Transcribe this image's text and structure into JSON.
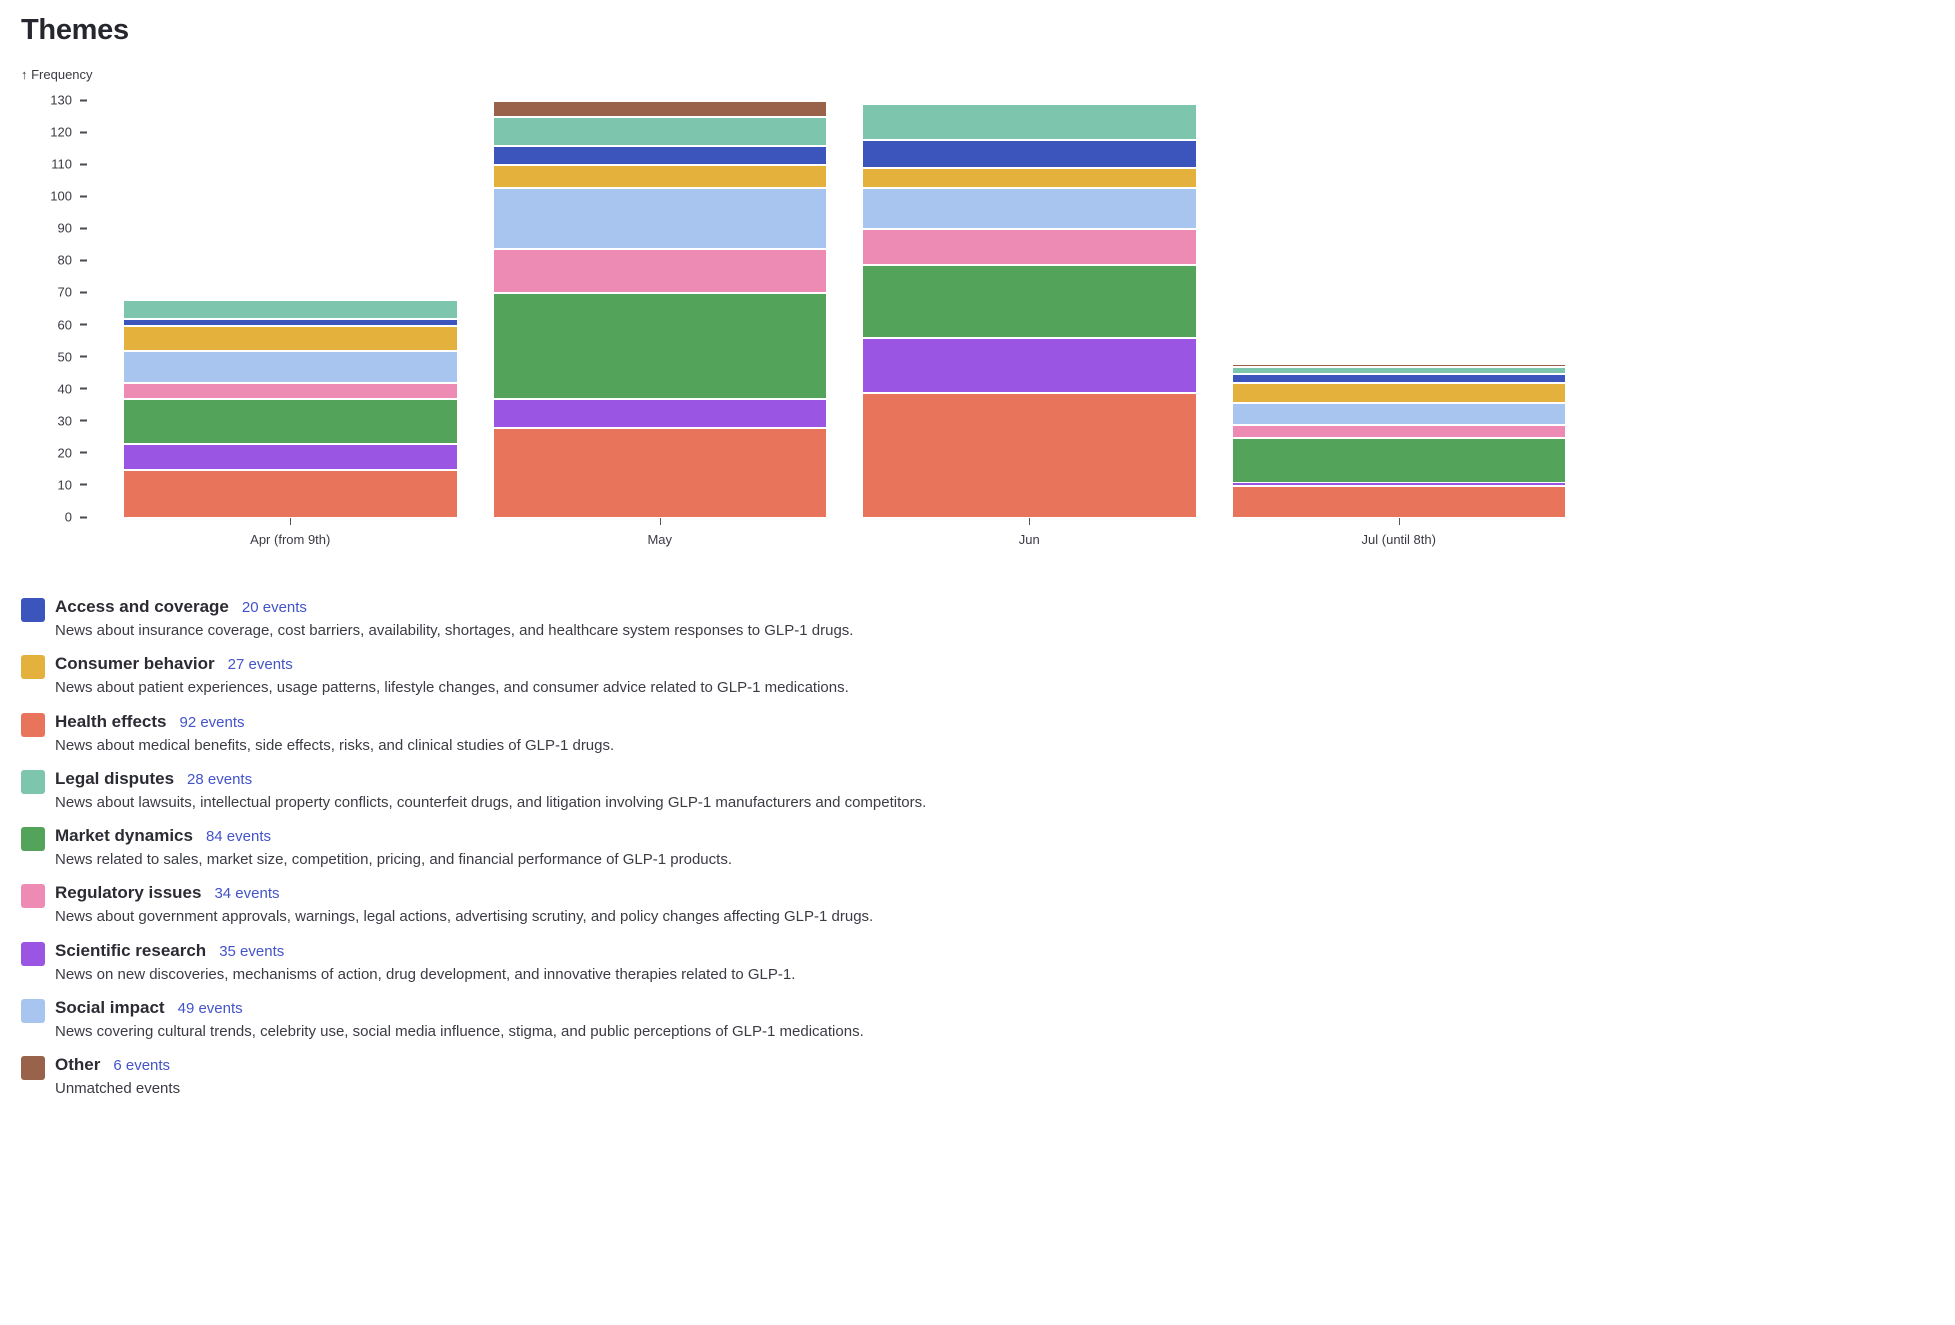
{
  "page": {
    "title": "Themes"
  },
  "chart_data": {
    "type": "bar",
    "stacked": true,
    "title": "Themes",
    "ylabel": "↑ Frequency",
    "xlabel": "",
    "ylim": [
      0,
      130
    ],
    "ytick_step": 10,
    "grid": false,
    "legend_position": "bottom",
    "categories": [
      "Apr (from 9th)",
      "May",
      "Jun",
      "Jul (until 8th)"
    ],
    "stack_order_bottom_to_top": [
      "Health effects",
      "Scientific research",
      "Market dynamics",
      "Regulatory issues",
      "Social impact",
      "Consumer behavior",
      "Access and coverage",
      "Legal disputes",
      "Other"
    ],
    "series": [
      {
        "name": "Health effects",
        "color": "#e8745c",
        "values": [
          15,
          28,
          39,
          10
        ]
      },
      {
        "name": "Scientific research",
        "color": "#9a55e2",
        "values": [
          8,
          9,
          17,
          1
        ]
      },
      {
        "name": "Market dynamics",
        "color": "#53a35a",
        "values": [
          14,
          33,
          23,
          14
        ]
      },
      {
        "name": "Regulatory issues",
        "color": "#ee8bb5",
        "values": [
          5,
          14,
          11,
          4
        ]
      },
      {
        "name": "Social impact",
        "color": "#a8c5f0",
        "values": [
          10,
          19,
          13,
          7
        ]
      },
      {
        "name": "Consumer behavior",
        "color": "#e3b13c",
        "values": [
          8,
          7,
          6,
          6
        ]
      },
      {
        "name": "Access and coverage",
        "color": "#3c55bd",
        "values": [
          2,
          6,
          9,
          3
        ]
      },
      {
        "name": "Legal disputes",
        "color": "#7ec5ad",
        "values": [
          6,
          9,
          11,
          2
        ]
      },
      {
        "name": "Other",
        "color": "#99624a",
        "values": [
          0,
          5,
          0,
          1
        ]
      }
    ]
  },
  "legend": {
    "items": [
      {
        "name": "Access and coverage",
        "events": "20 events",
        "color": "#3c55bd",
        "description": "News about insurance coverage, cost barriers, availability, shortages, and healthcare system responses to GLP-1 drugs."
      },
      {
        "name": "Consumer behavior",
        "events": "27 events",
        "color": "#e3b13c",
        "description": "News about patient experiences, usage patterns, lifestyle changes, and consumer advice related to GLP-1 medications."
      },
      {
        "name": "Health effects",
        "events": "92 events",
        "color": "#e8745c",
        "description": "News about medical benefits, side effects, risks, and clinical studies of GLP-1 drugs."
      },
      {
        "name": "Legal disputes",
        "events": "28 events",
        "color": "#7ec5ad",
        "description": "News about lawsuits, intellectual property conflicts, counterfeit drugs, and litigation involving GLP-1 manufacturers and competitors."
      },
      {
        "name": "Market dynamics",
        "events": "84 events",
        "color": "#53a35a",
        "description": "News related to sales, market size, competition, pricing, and financial performance of GLP-1 products."
      },
      {
        "name": "Regulatory issues",
        "events": "34 events",
        "color": "#ee8bb5",
        "description": "News about government approvals, warnings, legal actions, advertising scrutiny, and policy changes affecting GLP-1 drugs."
      },
      {
        "name": "Scientific research",
        "events": "35 events",
        "color": "#9a55e2",
        "description": "News on new discoveries, mechanisms of action, drug development, and innovative therapies related to GLP-1."
      },
      {
        "name": "Social impact",
        "events": "49 events",
        "color": "#a8c5f0",
        "description": "News covering cultural trends, celebrity use, social media influence, stigma, and public perceptions of GLP-1 medications."
      },
      {
        "name": "Other",
        "events": "6 events",
        "color": "#99624a",
        "description": "Unmatched events"
      }
    ]
  }
}
